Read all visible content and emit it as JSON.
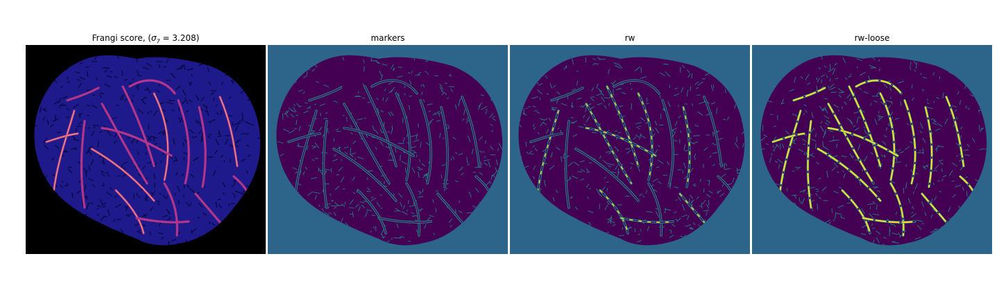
{
  "figure": {
    "panels": [
      {
        "id": "frangi",
        "title_prefix": "Frangi score, (",
        "title_sigma": "σ",
        "title_sub": "7",
        "title_suffix": " = 3.208)",
        "background_color": "#000000",
        "tissue_color": "#1f1a8c",
        "texture_color": "#0b0b4a",
        "vessel_color": "#b1368a",
        "highlight_color": "#f7a573"
      },
      {
        "id": "markers",
        "title": "markers",
        "background_color": "#2c6589",
        "tissue_color": "#440154",
        "vessel_color": "#21908d"
      },
      {
        "id": "rw",
        "title": "rw",
        "background_color": "#2c6589",
        "tissue_color": "#440154",
        "vessel_color": "#21908d",
        "label_color": "#fde725"
      },
      {
        "id": "rw-loose",
        "title": "rw-loose",
        "background_color": "#2c6589",
        "tissue_color": "#440154",
        "vessel_color": "#21908d",
        "label_color": "#fde725"
      }
    ]
  }
}
